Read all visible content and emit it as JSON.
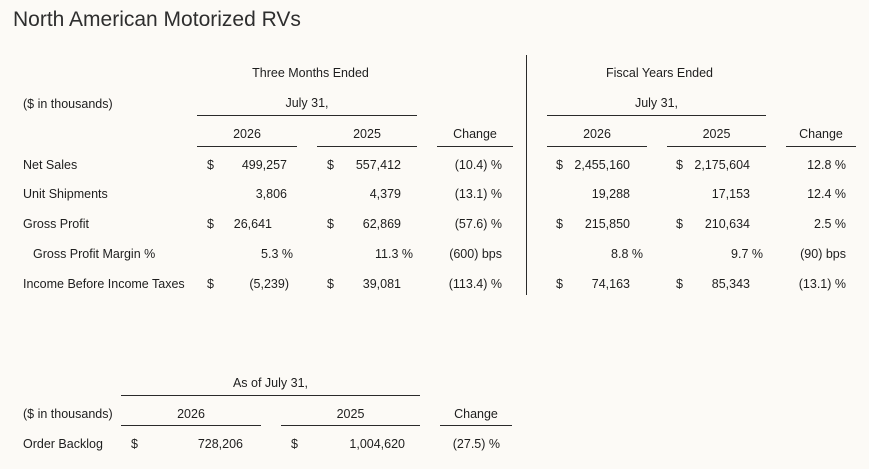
{
  "title": "North American Motorized RVs",
  "top_table": {
    "units_label": "($ in thousands)",
    "three_months_header": "Three Months Ended",
    "fiscal_years_header": "Fiscal Years Ended",
    "date_label_left": "July 31,",
    "date_label_right": "July 31,",
    "year_2026": "2026",
    "year_2025": "2025",
    "change_label": "Change",
    "dollar": "$",
    "rows": [
      {
        "label": "Net Sales",
        "q26": "499,257",
        "q25": "557,412",
        "qchg": "(10.4) %",
        "f26": "2,455,160",
        "f25": "2,175,604",
        "fchg": "12.8 %"
      },
      {
        "label": "Unit Shipments",
        "q26": "3,806",
        "q25": "4,379",
        "qchg": "(13.1) %",
        "f26": "19,288",
        "f25": "17,153",
        "fchg": "12.4 %"
      },
      {
        "label": "Gross Profit",
        "q26": "26,641",
        "q25": "62,869",
        "qchg": "(57.6) %",
        "f26": "215,850",
        "f25": "210,634",
        "fchg": "2.5 %"
      },
      {
        "label": "Gross Profit Margin %",
        "q26": "5.3 %",
        "q25": "11.3 %",
        "qchg": "(600) bps",
        "f26": "8.8 %",
        "f25": "9.7 %",
        "fchg": "(90) bps"
      },
      {
        "label": "Income Before Income Taxes",
        "q26": "(5,239)",
        "q25": "39,081",
        "qchg": "(113.4) %",
        "f26": "74,163",
        "f25": "85,343",
        "fchg": "(13.1) %"
      }
    ]
  },
  "backlog_table": {
    "as_of_label": "As of July 31,",
    "units_label": "($ in thousands)",
    "year_2026": "2026",
    "year_2025": "2025",
    "change_label": "Change",
    "dollar": "$",
    "row": {
      "label": "Order Backlog",
      "v26": "728,206",
      "v25": "1,004,620",
      "chg": "(27.5) %"
    }
  }
}
